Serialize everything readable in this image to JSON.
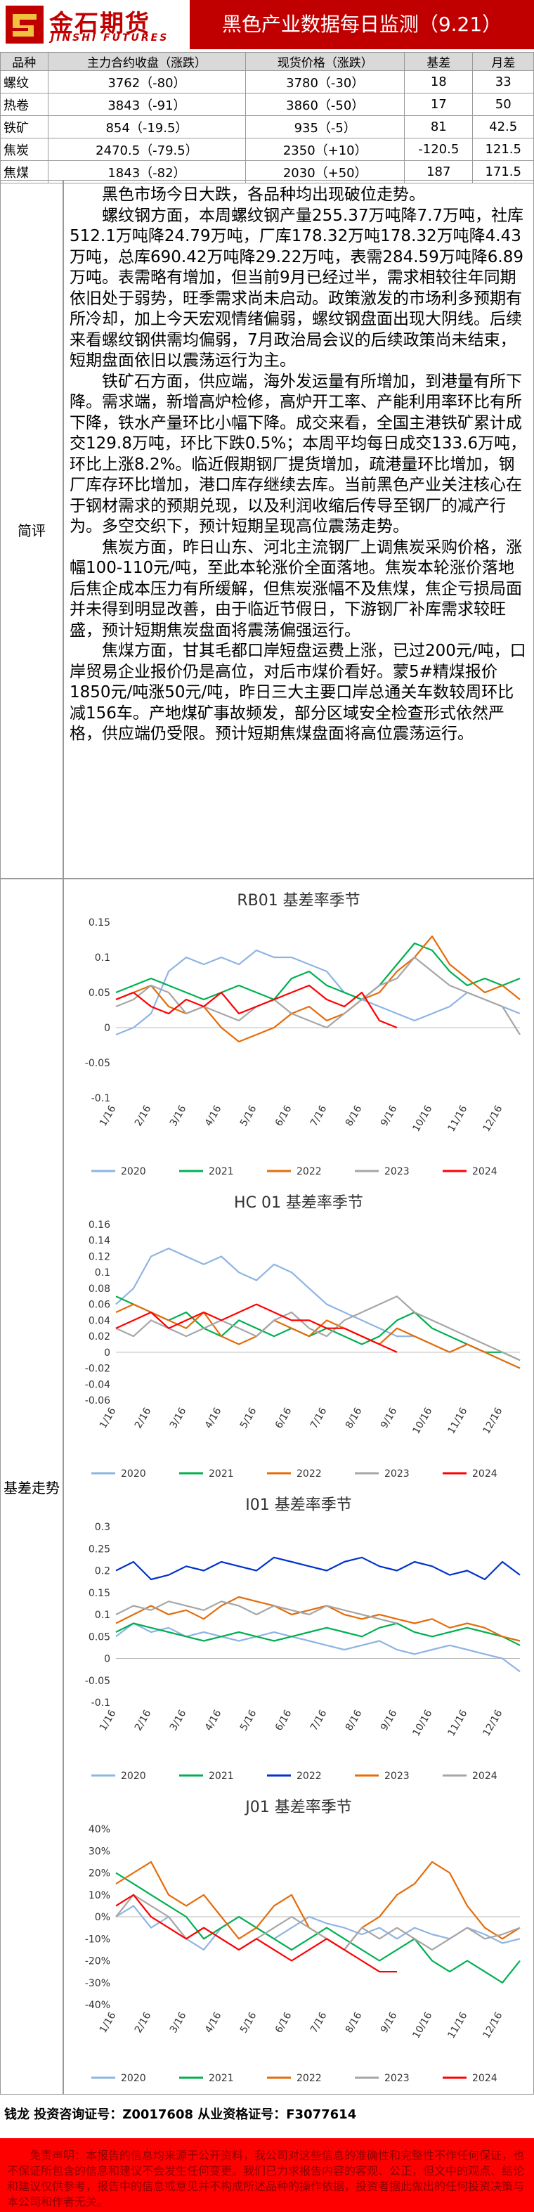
{
  "header": {
    "logo_cn": "金石期货",
    "logo_en": "JINSHI FUTURES",
    "title": "黑色产业数据每日监测（9.21）"
  },
  "table": {
    "header": [
      "品种",
      "主力合约收盘（涨跌）",
      "现货价格（涨跌）",
      "基差",
      "月差"
    ],
    "rows": [
      [
        "螺纹",
        "3762（-80）",
        "3780（-30）",
        "18",
        "33"
      ],
      [
        "热卷",
        "3843（-91）",
        "3860（-50）",
        "17",
        "50"
      ],
      [
        "铁矿",
        "854（-19.5）",
        "935（-5）",
        "81",
        "42.5"
      ],
      [
        "焦炭",
        "2470.5（-79.5）",
        "2350（+10）",
        "-120.5",
        "121.5"
      ],
      [
        "焦煤",
        "1843（-82）",
        "2030（+50）",
        "187",
        "171.5"
      ]
    ]
  },
  "review": {
    "label": "简评",
    "paragraphs": [
      "黑色市场今日大跌，各品种均出现破位走势。",
      "螺纹钢方面，本周螺纹钢产量255.37万吨降7.7万吨，社库512.1万吨降24.79万吨，厂库178.32万吨178.32万吨降4.43万吨，总库690.42万吨降29.22万吨，表需284.59万吨降6.89万吨。表需略有增加，但当前9月已经过半，需求相较往年同期依旧处于弱势，旺季需求尚未启动。政策激发的市场利多预期有所冷却，加上今天宏观情绪偏弱，螺纹钢盘面出现大阴线。后续来看螺纹钢供需均偏弱，7月政治局会议的后续政策尚未结束，短期盘面依旧以震荡运行为主。",
      "铁矿石方面，供应端，海外发运量有所增加，到港量有所下降。需求端，新增高炉检修，高炉开工率、产能利用率环比有所下降，铁水产量环比小幅下降。成交来看，全国主港铁矿累计成交129.8万吨，环比下跌0.5%；本周平均每日成交133.6万吨，环比上涨8.2%。临近假期钢厂提货增加，疏港量环比增加，钢厂库存环比增加，港口库存继续去库。当前黑色产业关注核心在于钢材需求的预期兑现，以及利润收缩后传导至钢厂的减产行为。多空交织下，预计短期呈现高位震荡走势。",
      "焦炭方面，昨日山东、河北主流钢厂上调焦炭采购价格，涨幅100-110元/吨，至此本轮涨价全面落地。焦炭本轮涨价落地后焦企成本压力有所缓解，但焦炭涨幅不及焦煤，焦企亏损局面并未得到明显改善，由于临近节假日，下游钢厂补库需求较旺盛，预计短期焦炭盘面将震荡偏强运行。",
      "焦煤方面，甘其毛都口岸短盘运费上涨，已过200元/吨，口岸贸易企业报价仍是高位，对后市煤价看好。蒙5#精煤报价1850元/吨涨50元/吨，昨日三大主要口岸总通关车数较周环比减156车。产地煤矿事故频发，部分区域安全检查形式依然严格，供应端仍受限。预计短期焦煤盘面将高位震荡运行。"
    ]
  },
  "basis_label": "基差走势",
  "chart_data": [
    {
      "type": "line",
      "title": "RB01 基差率季节",
      "categories": [
        "1/16",
        null,
        "2/16",
        null,
        "3/16",
        null,
        "4/16",
        null,
        "5/16",
        null,
        "6/16",
        null,
        "7/16",
        null,
        "8/16",
        null,
        "9/16",
        null,
        "10/16",
        null,
        "11/16",
        null,
        "12/16",
        null
      ],
      "ylim": [
        -0.1,
        0.15
      ],
      "yticks": [
        0.15,
        0.1,
        0.05,
        0,
        -0.05,
        -0.1
      ],
      "grid": false,
      "series": [
        {
          "name": "2020",
          "color": "#8eb4e3",
          "values": [
            -0.01,
            0.0,
            0.02,
            0.08,
            0.1,
            0.09,
            0.1,
            0.09,
            0.11,
            0.1,
            0.1,
            0.09,
            0.08,
            0.05,
            0.04,
            0.03,
            0.02,
            0.01,
            0.02,
            0.03,
            0.05,
            0.04,
            0.03,
            0.02
          ]
        },
        {
          "name": "2021",
          "color": "#00b050",
          "values": [
            0.05,
            0.06,
            0.07,
            0.06,
            0.05,
            0.04,
            0.05,
            0.06,
            0.05,
            0.04,
            0.07,
            0.08,
            0.06,
            0.05,
            0.04,
            0.06,
            0.09,
            0.12,
            0.11,
            0.08,
            0.06,
            0.07,
            0.06,
            0.07
          ]
        },
        {
          "name": "2022",
          "color": "#e46c0a",
          "values": [
            0.04,
            0.05,
            0.06,
            0.03,
            0.02,
            0.03,
            0.0,
            -0.02,
            -0.01,
            0.0,
            0.02,
            0.03,
            0.01,
            0.02,
            0.04,
            0.05,
            0.08,
            0.1,
            0.13,
            0.09,
            0.07,
            0.05,
            0.06,
            0.04
          ]
        },
        {
          "name": "2023",
          "color": "#a6a6a6",
          "values": [
            0.03,
            0.04,
            0.06,
            0.05,
            0.02,
            0.03,
            0.02,
            0.01,
            0.03,
            0.04,
            0.02,
            0.01,
            0.0,
            0.02,
            0.04,
            0.06,
            0.07,
            0.1,
            0.08,
            0.06,
            0.05,
            0.04,
            0.03,
            -0.01
          ]
        },
        {
          "name": "2024",
          "color": "#ff0000",
          "values": [
            0.04,
            0.05,
            0.03,
            0.02,
            0.04,
            0.03,
            0.05,
            0.02,
            0.03,
            0.04,
            0.05,
            0.06,
            0.04,
            0.03,
            0.05,
            0.01,
            0.0,
            null,
            null,
            null,
            null,
            null,
            null,
            null
          ]
        }
      ]
    },
    {
      "type": "line",
      "title": "HC 01 基差率季节",
      "categories": [
        "1/16",
        null,
        "2/16",
        null,
        "3/16",
        null,
        "4/16",
        null,
        "5/16",
        null,
        "6/16",
        null,
        "7/16",
        null,
        "8/16",
        null,
        "9/16",
        null,
        "10/16",
        null,
        "11/16",
        null,
        "12/16",
        null
      ],
      "ylim": [
        -0.06,
        0.16
      ],
      "yticks": [
        0.16,
        0.14,
        0.12,
        0.1,
        0.08,
        0.06,
        0.04,
        0.02,
        0,
        -0.02,
        -0.04,
        -0.06
      ],
      "grid": false,
      "series": [
        {
          "name": "2020",
          "color": "#8eb4e3",
          "values": [
            0.06,
            0.08,
            0.12,
            0.13,
            0.12,
            0.11,
            0.12,
            0.1,
            0.09,
            0.11,
            0.1,
            0.08,
            0.06,
            0.05,
            0.04,
            0.03,
            0.02,
            0.02,
            0.01,
            0.0,
            0.01,
            0.0,
            -0.01,
            -0.02
          ]
        },
        {
          "name": "2021",
          "color": "#00b050",
          "values": [
            0.07,
            0.06,
            0.05,
            0.04,
            0.05,
            0.03,
            0.02,
            0.04,
            0.03,
            0.02,
            0.03,
            0.02,
            0.03,
            0.02,
            0.01,
            0.02,
            0.04,
            0.05,
            0.03,
            0.02,
            0.01,
            0.0,
            0.0,
            -0.01
          ]
        },
        {
          "name": "2022",
          "color": "#e46c0a",
          "values": [
            0.05,
            0.06,
            0.05,
            0.04,
            0.03,
            0.05,
            0.02,
            0.01,
            0.02,
            0.04,
            0.03,
            0.02,
            0.04,
            0.03,
            0.02,
            0.01,
            0.03,
            0.02,
            0.01,
            0.0,
            0.01,
            0.0,
            -0.01,
            -0.02
          ]
        },
        {
          "name": "2023",
          "color": "#a6a6a6",
          "values": [
            0.03,
            0.02,
            0.04,
            0.03,
            0.02,
            0.03,
            0.04,
            0.03,
            0.02,
            0.04,
            0.05,
            0.03,
            0.02,
            0.04,
            0.05,
            0.06,
            0.07,
            0.05,
            0.04,
            0.03,
            0.02,
            0.01,
            0.0,
            -0.01
          ]
        },
        {
          "name": "2024",
          "color": "#ff0000",
          "values": [
            0.03,
            0.04,
            0.05,
            0.03,
            0.04,
            0.05,
            0.04,
            0.05,
            0.06,
            0.05,
            0.04,
            0.04,
            0.03,
            0.03,
            0.02,
            0.01,
            0.0,
            null,
            null,
            null,
            null,
            null,
            null,
            null
          ]
        }
      ]
    },
    {
      "type": "line",
      "title": "I01 基差率季节",
      "categories": [
        "1/16",
        null,
        "2/16",
        null,
        "3/16",
        null,
        "4/16",
        null,
        "5/16",
        null,
        "6/16",
        null,
        "7/16",
        null,
        "8/16",
        null,
        "9/16",
        null,
        "10/16",
        null,
        "11/16",
        null,
        "12/16",
        null
      ],
      "ylim": [
        -0.1,
        0.3
      ],
      "yticks": [
        0.3,
        0.25,
        0.2,
        0.15,
        0.1,
        0.05,
        0,
        -0.05,
        -0.1
      ],
      "grid": false,
      "series": [
        {
          "name": "2020",
          "color": "#8eb4e3",
          "values": [
            0.05,
            0.08,
            0.06,
            0.07,
            0.05,
            0.06,
            0.05,
            0.04,
            0.05,
            0.06,
            0.05,
            0.04,
            0.03,
            0.02,
            0.03,
            0.04,
            0.02,
            0.01,
            0.02,
            0.03,
            0.02,
            0.01,
            0.0,
            -0.03
          ]
        },
        {
          "name": "2021",
          "color": "#00b050",
          "values": [
            0.06,
            0.08,
            0.07,
            0.06,
            0.05,
            0.04,
            0.05,
            0.06,
            0.05,
            0.04,
            0.05,
            0.06,
            0.07,
            0.06,
            0.05,
            0.07,
            0.08,
            0.06,
            0.05,
            0.06,
            0.07,
            0.06,
            0.05,
            0.03
          ]
        },
        {
          "name": "2022",
          "color": "#0033cc",
          "values": [
            0.2,
            0.22,
            0.18,
            0.19,
            0.21,
            0.2,
            0.22,
            0.21,
            0.2,
            0.23,
            0.22,
            0.21,
            0.2,
            0.22,
            0.23,
            0.21,
            0.2,
            0.22,
            0.21,
            0.19,
            0.2,
            0.18,
            0.22,
            0.19
          ]
        },
        {
          "name": "2023",
          "color": "#e46c0a",
          "values": [
            0.08,
            0.1,
            0.12,
            0.1,
            0.11,
            0.09,
            0.12,
            0.14,
            0.13,
            0.12,
            0.1,
            0.11,
            0.12,
            0.1,
            0.09,
            0.1,
            0.09,
            0.08,
            0.09,
            0.07,
            0.08,
            0.07,
            0.05,
            0.04
          ]
        },
        {
          "name": "2024",
          "color": "#a6a6a6",
          "values": [
            0.1,
            0.12,
            0.11,
            0.13,
            0.12,
            0.11,
            0.13,
            0.12,
            0.1,
            0.12,
            0.11,
            0.1,
            0.12,
            0.11,
            0.1,
            0.09,
            0.08,
            null,
            null,
            null,
            null,
            null,
            null,
            null
          ]
        }
      ]
    },
    {
      "type": "line",
      "title": "J01 基差率季节",
      "categories": [
        "1/16",
        null,
        "2/16",
        null,
        "3/16",
        null,
        "4/16",
        null,
        "5/16",
        null,
        "6/16",
        null,
        "7/16",
        null,
        "8/16",
        null,
        "9/16",
        null,
        "10/16",
        null,
        "11/16",
        null,
        "12/16",
        null
      ],
      "ylim": [
        -40,
        40
      ],
      "yticks": [
        {
          "value": 40,
          "label": "40%"
        },
        {
          "value": 30,
          "label": "30%"
        },
        {
          "value": 20,
          "label": "20%"
        },
        {
          "value": 10,
          "label": "10%"
        },
        {
          "value": 0,
          "label": "0%"
        },
        {
          "value": -10,
          "label": "-10%"
        },
        {
          "value": -20,
          "label": "-20%"
        },
        {
          "value": -30,
          "label": "-30%"
        },
        {
          "value": -40,
          "label": "-40%"
        }
      ],
      "grid": false,
      "series": [
        {
          "name": "2020",
          "color": "#8eb4e3",
          "values": [
            0,
            5,
            -5,
            0,
            -10,
            -15,
            -5,
            0,
            -5,
            -10,
            -5,
            0,
            -3,
            -5,
            -8,
            -5,
            -10,
            -5,
            -8,
            -10,
            -5,
            -8,
            -12,
            -10
          ]
        },
        {
          "name": "2021",
          "color": "#00b050",
          "values": [
            20,
            15,
            10,
            5,
            0,
            -10,
            -5,
            0,
            -5,
            -10,
            -15,
            -10,
            -5,
            -10,
            -15,
            -20,
            -15,
            -10,
            -20,
            -25,
            -20,
            -25,
            -30,
            -20
          ]
        },
        {
          "name": "2022",
          "color": "#e46c0a",
          "values": [
            15,
            20,
            25,
            10,
            5,
            10,
            0,
            -10,
            -5,
            5,
            10,
            -5,
            -10,
            -15,
            -5,
            0,
            10,
            15,
            25,
            20,
            5,
            -5,
            -10,
            -5
          ]
        },
        {
          "name": "2023",
          "color": "#a6a6a6",
          "values": [
            0,
            10,
            5,
            0,
            -10,
            -5,
            -10,
            -15,
            -10,
            -5,
            0,
            -5,
            -10,
            -15,
            -5,
            -10,
            -5,
            -10,
            -15,
            -10,
            -5,
            -10,
            -8,
            -5
          ]
        },
        {
          "name": "2024",
          "color": "#ff0000",
          "values": [
            5,
            10,
            0,
            -5,
            -10,
            -5,
            -10,
            -15,
            -10,
            -15,
            -20,
            -15,
            -10,
            -15,
            -20,
            -25,
            -25,
            null,
            null,
            null,
            null,
            null,
            null,
            null
          ]
        }
      ]
    }
  ],
  "footer": {
    "contact": "钱龙 投资咨询证号：Z0017608 从业资格证号：F3077614",
    "disclaimer": "免责声明：本报告的信息均来源于公开资料，我公司对这些信息的准确性和完整性不作任何保证，也不保证所包含的信息和建议不会发生任何变更。我们已力求报告内容的客观、公正，但文中的观点、结论和建议仅供参考，报告中的信息或意见并不构成所述品种的操作依据，投资者据此做出的任何投资决策与本公司和作者无关。"
  }
}
